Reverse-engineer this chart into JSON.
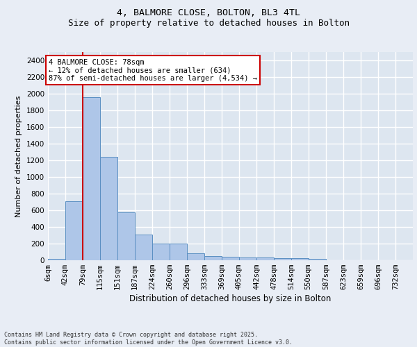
{
  "title_line1": "4, BALMORE CLOSE, BOLTON, BL3 4TL",
  "title_line2": "Size of property relative to detached houses in Bolton",
  "xlabel": "Distribution of detached houses by size in Bolton",
  "ylabel": "Number of detached properties",
  "bar_labels": [
    "6sqm",
    "42sqm",
    "79sqm",
    "115sqm",
    "151sqm",
    "187sqm",
    "224sqm",
    "260sqm",
    "296sqm",
    "333sqm",
    "369sqm",
    "405sqm",
    "442sqm",
    "478sqm",
    "514sqm",
    "550sqm",
    "587sqm",
    "623sqm",
    "659sqm",
    "696sqm",
    "732sqm"
  ],
  "bar_values": [
    15,
    710,
    1960,
    1240,
    575,
    305,
    200,
    200,
    82,
    47,
    38,
    35,
    30,
    22,
    22,
    15,
    0,
    0,
    0,
    0,
    0
  ],
  "bar_color": "#aec6e8",
  "bar_edge_color": "#5a8fc2",
  "ylim": [
    0,
    2500
  ],
  "yticks": [
    0,
    200,
    400,
    600,
    800,
    1000,
    1200,
    1400,
    1600,
    1800,
    2000,
    2200,
    2400
  ],
  "marker_color": "#cc0000",
  "annotation_title": "4 BALMORE CLOSE: 78sqm",
  "annotation_line1": "← 12% of detached houses are smaller (634)",
  "annotation_line2": "87% of semi-detached houses are larger (4,534) →",
  "annotation_box_color": "#cc0000",
  "bg_color": "#dde6f0",
  "grid_color": "#ffffff",
  "fig_bg_color": "#e8edf5",
  "footer_line1": "Contains HM Land Registry data © Crown copyright and database right 2025.",
  "footer_line2": "Contains public sector information licensed under the Open Government Licence v3.0.",
  "title_fontsize": 9.5,
  "ylabel_fontsize": 8,
  "xlabel_fontsize": 8.5,
  "tick_fontsize": 7.5,
  "annotation_fontsize": 7.5,
  "footer_fontsize": 6.0
}
